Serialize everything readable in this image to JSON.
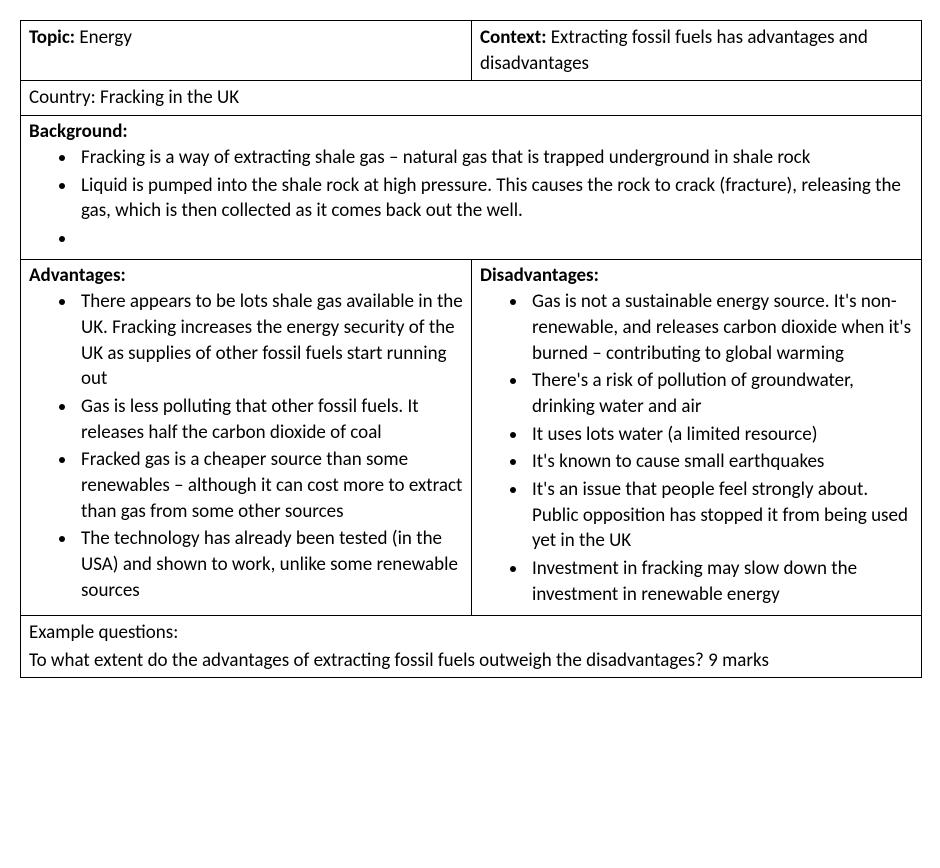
{
  "header": {
    "topic_label": "Topic:",
    "topic_value": "Energy",
    "context_label": "Context:",
    "context_value": "Extracting fossil fuels has advantages and disadvantages"
  },
  "country_line": "Country: Fracking in the UK",
  "background": {
    "label": "Background:",
    "items": [
      "Fracking is a way of extracting shale gas – natural gas that is trapped underground in shale rock",
      "Liquid is pumped into the shale rock at high pressure. This causes the rock to crack (fracture), releasing the gas, which is then collected as it comes back out the well.",
      ""
    ]
  },
  "advantages": {
    "label": "Advantages:",
    "items": [
      "There appears to be lots shale gas available in the UK. Fracking increases the energy security of the UK as supplies of other fossil fuels start running out",
      "Gas is less polluting that other fossil fuels. It releases half the carbon dioxide of coal",
      "Fracked gas is a cheaper source than some renewables – although it can cost more to extract than gas from some other sources",
      "The technology has already been tested (in the USA) and shown to work, unlike some renewable sources"
    ]
  },
  "disadvantages": {
    "label": "Disadvantages:",
    "items": [
      "Gas is not a sustainable energy source. It's non-renewable, and releases carbon dioxide when it's burned – contributing to global warming",
      "There's a risk of pollution of groundwater, drinking water and air",
      "It uses lots water (a limited resource)",
      "It's known to cause small earthquakes",
      "It's an issue that people feel strongly about. Public opposition has stopped it from being used yet in the UK",
      "Investment in fracking may slow down the investment in renewable  energy"
    ]
  },
  "questions": {
    "label": "Example questions:",
    "text": "To what extent do the advantages of extracting fossil fuels outweigh the disadvantages? 9 marks"
  },
  "style": {
    "font_family": "Calibri, Arial, sans-serif",
    "font_size_pt": 14,
    "text_color": "#000000",
    "border_color": "#000000",
    "background_color": "#ffffff"
  }
}
